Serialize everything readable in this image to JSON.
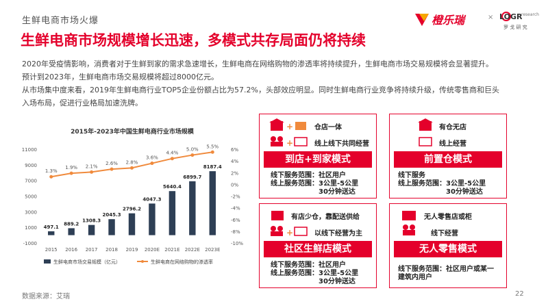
{
  "header": {
    "section": "生鲜电商市场火爆",
    "title": "生鲜电商市场规模增长迅速，多模式共存局面仍将持续",
    "logo1_text": "橙乐瑞",
    "logo_separator": "×",
    "logo2_main": "LOGR",
    "logo2_sub": "罗 戈 研 究",
    "logo2_research": "research"
  },
  "paragraphs": [
    "2020年受疫情影响，消费者对于生鲜到家的需求急速增长，生鲜电商在网络购物的渗透率将持续提升，生鲜电商市场交易规模将会显著提升。",
    "预计到2023年，生鲜电商市场交易规模将超过8000亿元。",
    "从市场集中度来看，2019年生鲜电商行业TOP5企业份额占比为57.2%，头部效应明显。同时生鲜电商行业竞争将持续升级，传统零售商和巨头",
    "入场布局，促进行业格局加速洗牌。"
  ],
  "chart_data": {
    "type": "bar",
    "title": "2015年-2023年中国生鲜电商行业市场规模",
    "categories": [
      "2015",
      "2016",
      "2017",
      "2018",
      "2019",
      "2020E",
      "2021E",
      "2022E",
      "2023E"
    ],
    "series": [
      {
        "name": "生鲜电商市场交易规模（亿元）",
        "type": "bar",
        "values": [
          497.1,
          889.2,
          1308.3,
          2045.3,
          2796.2,
          4047.3,
          5640.4,
          6899.7,
          8187.4
        ],
        "color": "#2e3f55"
      },
      {
        "name": "生鲜电商在网络购物的渗透率",
        "type": "line",
        "values": [
          1.3,
          1.9,
          2.1,
          2.6,
          2.8,
          3.6,
          4.4,
          5.0,
          5.5
        ],
        "color": "#f08a3c",
        "axis": "right"
      }
    ],
    "left_axis": {
      "ticks": [
        "-1000",
        "1000",
        "3000",
        "5000",
        "7000",
        "9000",
        "11000"
      ],
      "ylim": [
        -1000,
        11000
      ]
    },
    "right_axis": {
      "ticks": [
        "-10%",
        "-8%",
        "-6%",
        "-4%",
        "-2%",
        "0%",
        "2%",
        "4%",
        "6%"
      ],
      "ylim": [
        -10,
        6
      ]
    }
  },
  "modes": [
    {
      "id": "store-home",
      "items": [
        "仓店一体",
        "线上线下共同经营"
      ],
      "title": "到店+到家模式",
      "desc": [
        "线下服务范围：社区用户",
        "线上服务范围：3公里-5公里",
        "30分钟送达"
      ]
    },
    {
      "id": "front-warehouse",
      "items": [
        "有仓无店",
        "线上经营"
      ],
      "title": "前置仓模式",
      "desc": [
        "线下服务",
        "线上服务范围：3公里-5公里",
        "30分钟送达"
      ]
    },
    {
      "id": "community",
      "items": [
        "有店少仓，靠配送供给",
        "以线下经营为主"
      ],
      "title": "社区生鲜店模式",
      "desc": [
        "线下服务范围：社区用户",
        "线上服务范围：3公里-5公里",
        "30分钟送达"
      ]
    },
    {
      "id": "unmanned",
      "items": [
        "无人零售店或柜",
        "线下经营"
      ],
      "title": "无人零售模式",
      "desc": [
        "线下服务范围：社区用户或某一",
        "建筑内用户"
      ]
    }
  ],
  "footer": {
    "source": "数据来源：艾瑞",
    "page": "22"
  },
  "colors": {
    "accent": "#e4002b",
    "bar": "#2e3f55",
    "line": "#f08a3c"
  }
}
